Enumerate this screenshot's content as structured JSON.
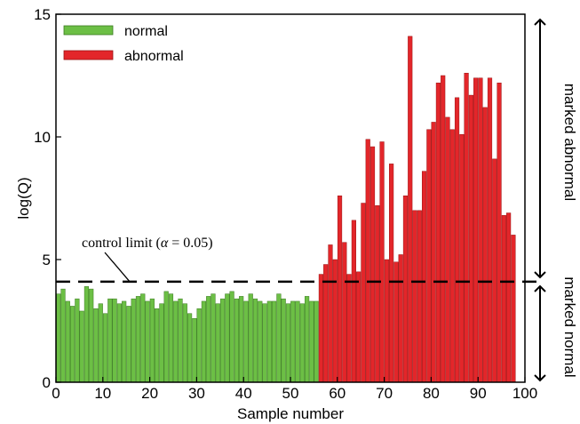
{
  "chart_data": {
    "type": "bar",
    "title": "",
    "xlabel": "Sample number",
    "ylabel": "log(Q)",
    "xlim": [
      0,
      100
    ],
    "ylim": [
      0,
      15
    ],
    "xticks": [
      "0",
      "10",
      "20",
      "30",
      "40",
      "50",
      "60",
      "70",
      "80",
      "90",
      "100"
    ],
    "yticks": [
      "0",
      "5",
      "10",
      "15"
    ],
    "grid": false,
    "legend_position": "top-left",
    "series": [
      {
        "name": "normal",
        "color": "#6cbf45",
        "x": [
          0,
          1,
          2,
          3,
          4,
          5,
          6,
          7,
          8,
          9,
          10,
          11,
          12,
          13,
          14,
          15,
          16,
          17,
          18,
          19,
          20,
          21,
          22,
          23,
          24,
          25,
          26,
          27,
          28,
          29,
          30,
          31,
          32,
          33,
          34,
          35,
          36,
          37,
          38,
          39,
          40,
          41,
          42,
          43,
          44,
          45,
          46,
          47,
          48,
          49,
          50,
          51,
          52,
          53,
          54,
          55
        ],
        "values": [
          3.6,
          3.8,
          3.3,
          3.1,
          3.4,
          2.9,
          3.9,
          3.8,
          3.0,
          3.2,
          2.8,
          3.4,
          3.4,
          3.2,
          3.3,
          3.1,
          3.4,
          3.5,
          3.6,
          3.3,
          3.4,
          3.0,
          3.2,
          3.7,
          3.6,
          3.3,
          3.4,
          3.2,
          2.8,
          2.6,
          3.0,
          3.3,
          3.5,
          3.6,
          3.2,
          3.4,
          3.6,
          3.7,
          3.4,
          3.5,
          3.3,
          3.6,
          3.4,
          3.3,
          3.2,
          3.3,
          3.3,
          3.6,
          3.4,
          3.2,
          3.3,
          3.3,
          3.2,
          3.5,
          3.3,
          3.3
        ]
      },
      {
        "name": "abnormal",
        "color": "#e3262a",
        "x": [
          56,
          57,
          58,
          59,
          60,
          61,
          62,
          63,
          64,
          65,
          66,
          67,
          68,
          69,
          70,
          71,
          72,
          73,
          74,
          75,
          76,
          77,
          78,
          79,
          80,
          81,
          82,
          83,
          84,
          85,
          86,
          87,
          88,
          89,
          90,
          91,
          92,
          93,
          94,
          95,
          96,
          97
        ],
        "values": [
          4.4,
          4.8,
          5.6,
          5.0,
          7.6,
          5.7,
          4.4,
          6.6,
          4.5,
          7.3,
          9.9,
          9.6,
          7.2,
          9.8,
          5.0,
          8.9,
          4.9,
          5.2,
          7.6,
          14.1,
          7.0,
          7.0,
          8.6,
          10.3,
          10.6,
          12.2,
          12.5,
          10.8,
          10.3,
          11.6,
          10.1,
          12.6,
          11.7,
          12.4,
          12.4,
          11.2,
          12.4,
          9.1,
          12.2,
          6.8,
          6.9,
          6.0
        ]
      }
    ],
    "control_limit": {
      "value": 4.1,
      "label": "control limit ("
    },
    "side_labels": {
      "upper": "marked abnormal",
      "lower": "marked normal"
    }
  }
}
